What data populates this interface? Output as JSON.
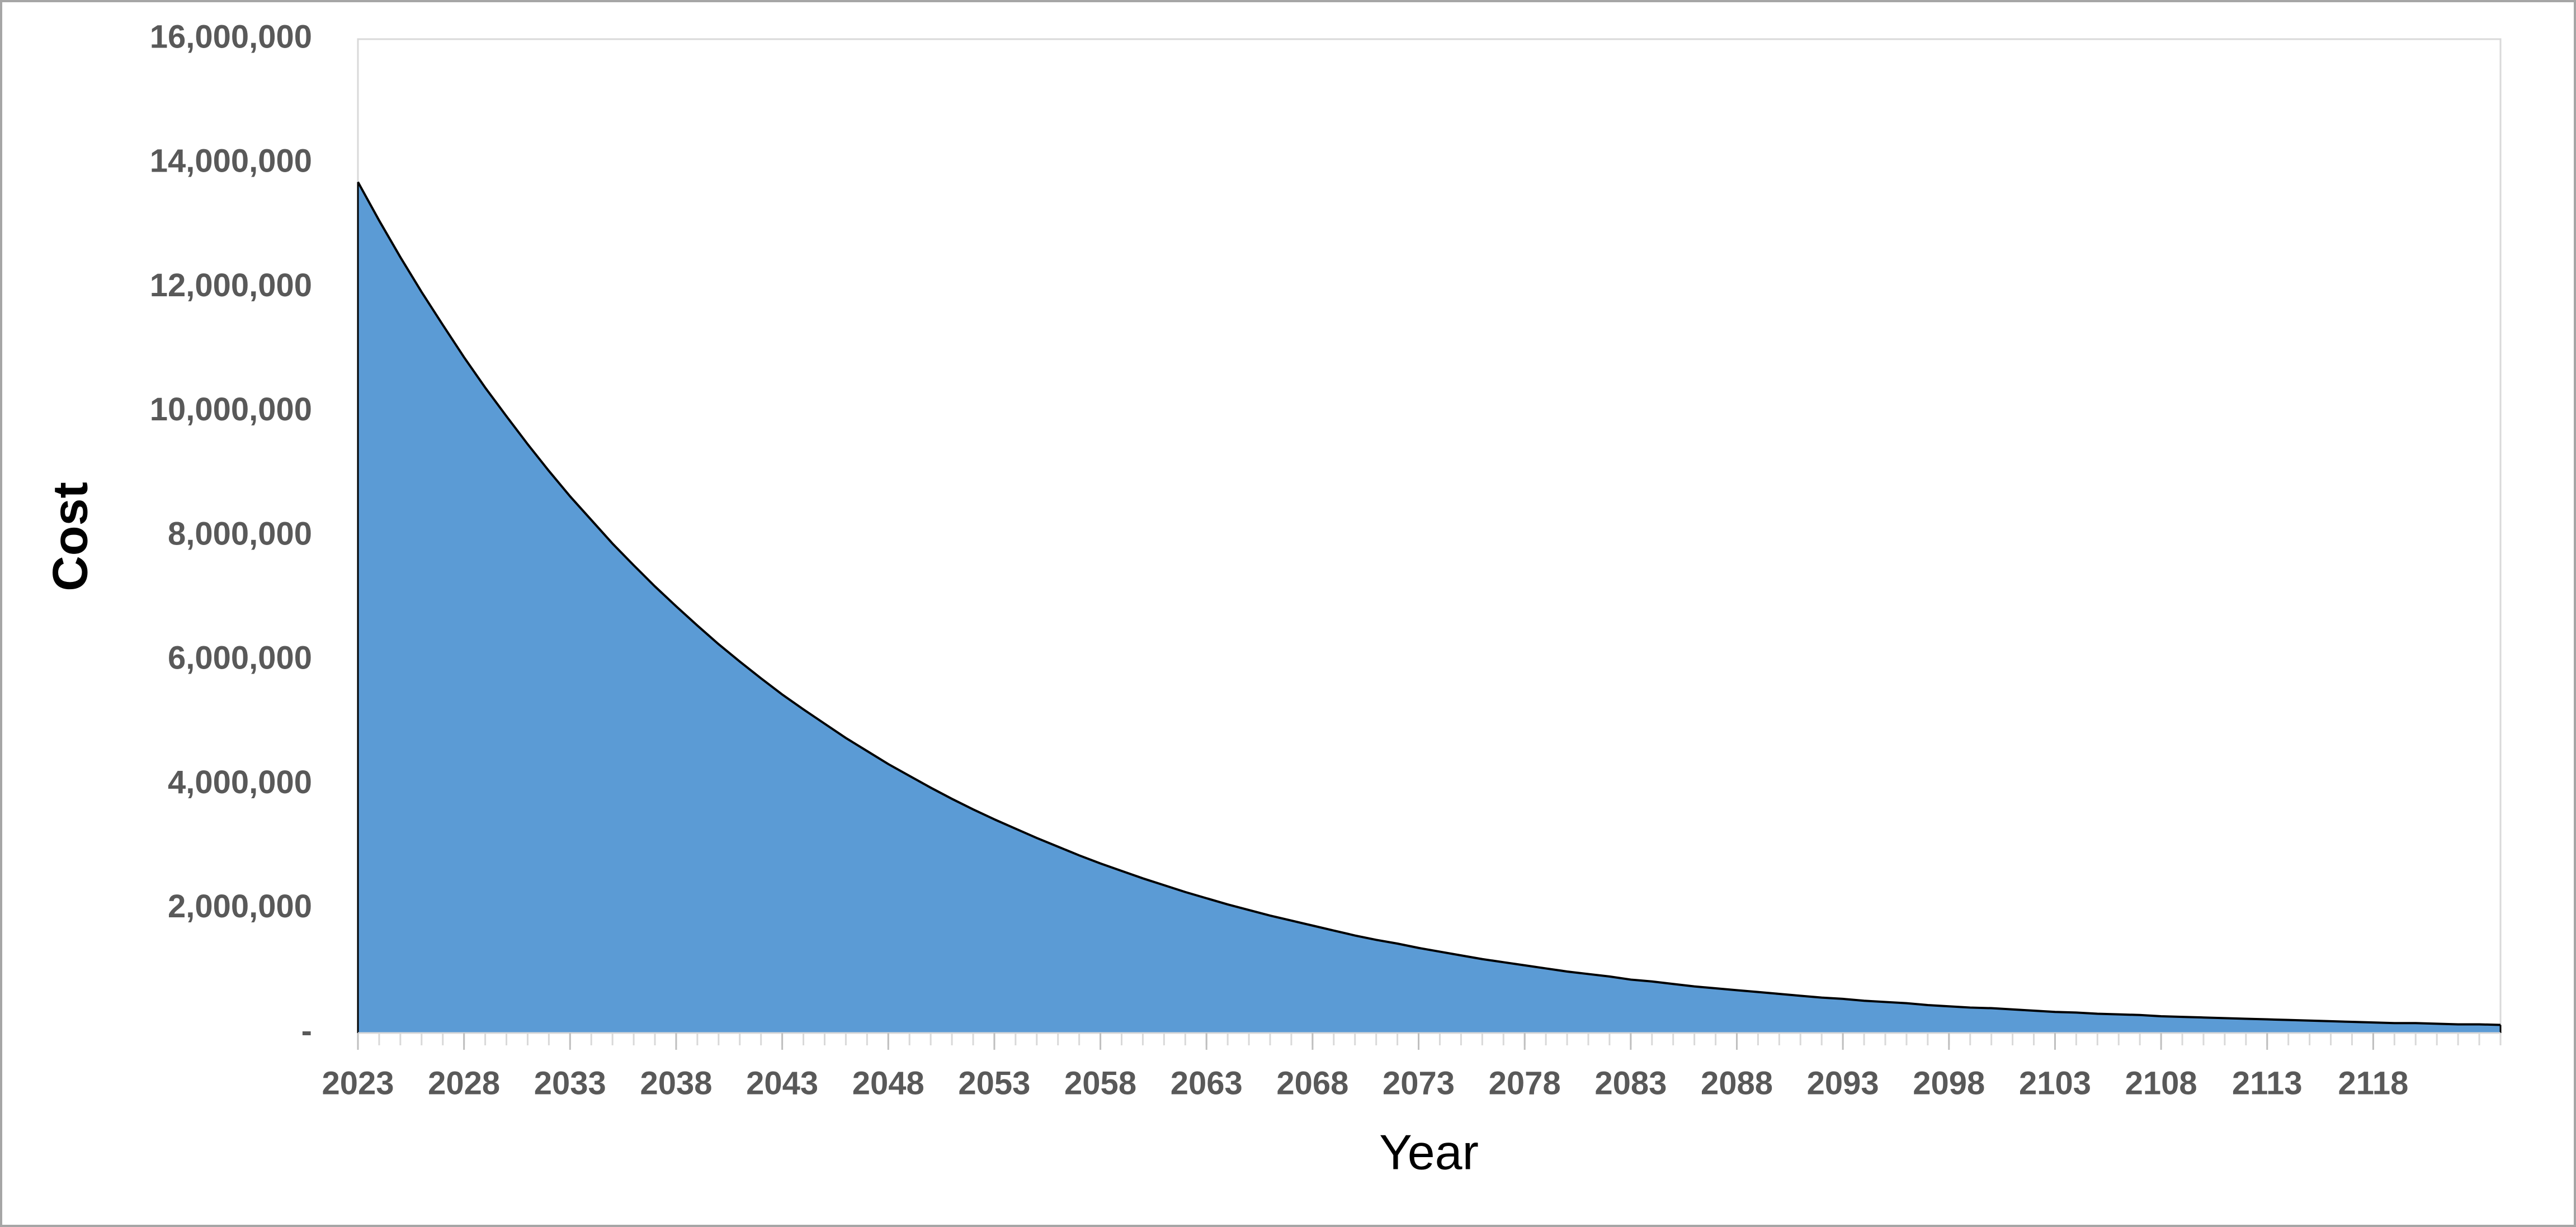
{
  "chart_data": {
    "type": "area",
    "x_label": "Year",
    "y_label": "Cost",
    "color": "#5b9bd5",
    "line_color": "#000000",
    "x": [
      2023,
      2024,
      2025,
      2026,
      2027,
      2028,
      2029,
      2030,
      2031,
      2032,
      2033,
      2034,
      2035,
      2036,
      2037,
      2038,
      2039,
      2040,
      2041,
      2042,
      2043,
      2044,
      2045,
      2046,
      2047,
      2048,
      2049,
      2050,
      2051,
      2052,
      2053,
      2054,
      2055,
      2056,
      2057,
      2058,
      2059,
      2060,
      2061,
      2062,
      2063,
      2064,
      2065,
      2066,
      2067,
      2068,
      2069,
      2070,
      2071,
      2072,
      2073,
      2074,
      2075,
      2076,
      2077,
      2078,
      2079,
      2080,
      2081,
      2082,
      2083,
      2084,
      2085,
      2086,
      2087,
      2088,
      2089,
      2090,
      2091,
      2092,
      2093,
      2094,
      2095,
      2096,
      2097,
      2098,
      2099,
      2100,
      2101,
      2102,
      2103,
      2104,
      2105,
      2106,
      2107,
      2108,
      2109,
      2110,
      2111,
      2112,
      2113,
      2114,
      2115,
      2116,
      2117,
      2118,
      2119,
      2120,
      2121,
      2122,
      2123,
      2124
    ],
    "values": [
      13700000,
      13080000,
      12490000,
      11930000,
      11400000,
      10880000,
      10390000,
      9930000,
      9480000,
      9050000,
      8640000,
      8260000,
      7880000,
      7530000,
      7190000,
      6870000,
      6560000,
      6260000,
      5980000,
      5710000,
      5450000,
      5210000,
      4980000,
      4750000,
      4540000,
      4330000,
      4140000,
      3950000,
      3770000,
      3600000,
      3440000,
      3290000,
      3140000,
      3000000,
      2860000,
      2730000,
      2610000,
      2490000,
      2380000,
      2270000,
      2170000,
      2070000,
      1980000,
      1890000,
      1810000,
      1730000,
      1650000,
      1570000,
      1500000,
      1440000,
      1370000,
      1310000,
      1250000,
      1190000,
      1140000,
      1090000,
      1040000,
      990000,
      950000,
      910000,
      860000,
      830000,
      790000,
      750000,
      720000,
      690000,
      660000,
      630000,
      600000,
      570000,
      550000,
      520000,
      500000,
      480000,
      450000,
      430000,
      410000,
      400000,
      380000,
      360000,
      340000,
      330000,
      310000,
      300000,
      290000,
      270000,
      260000,
      250000,
      240000,
      230000,
      220000,
      210000,
      200000,
      190000,
      180000,
      170000,
      160000,
      160000,
      150000,
      140000,
      140000,
      130000
    ],
    "xlim": [
      2023,
      2124
    ],
    "xticks": [
      2023,
      2028,
      2033,
      2038,
      2043,
      2048,
      2053,
      2058,
      2063,
      2068,
      2073,
      2078,
      2083,
      2088,
      2093,
      2098,
      2103,
      2108,
      2113,
      2118
    ],
    "ylim": [
      0,
      16000000
    ],
    "yticks": [
      {
        "value": 0,
        "label": "-"
      },
      {
        "value": 2000000,
        "label": "2,000,000"
      },
      {
        "value": 4000000,
        "label": "4,000,000"
      },
      {
        "value": 6000000,
        "label": "6,000,000"
      },
      {
        "value": 8000000,
        "label": "8,000,000"
      },
      {
        "value": 10000000,
        "label": "10,000,000"
      },
      {
        "value": 12000000,
        "label": "12,000,000"
      },
      {
        "value": 14000000,
        "label": "14,000,000"
      },
      {
        "value": 16000000,
        "label": "16,000,000"
      }
    ]
  }
}
